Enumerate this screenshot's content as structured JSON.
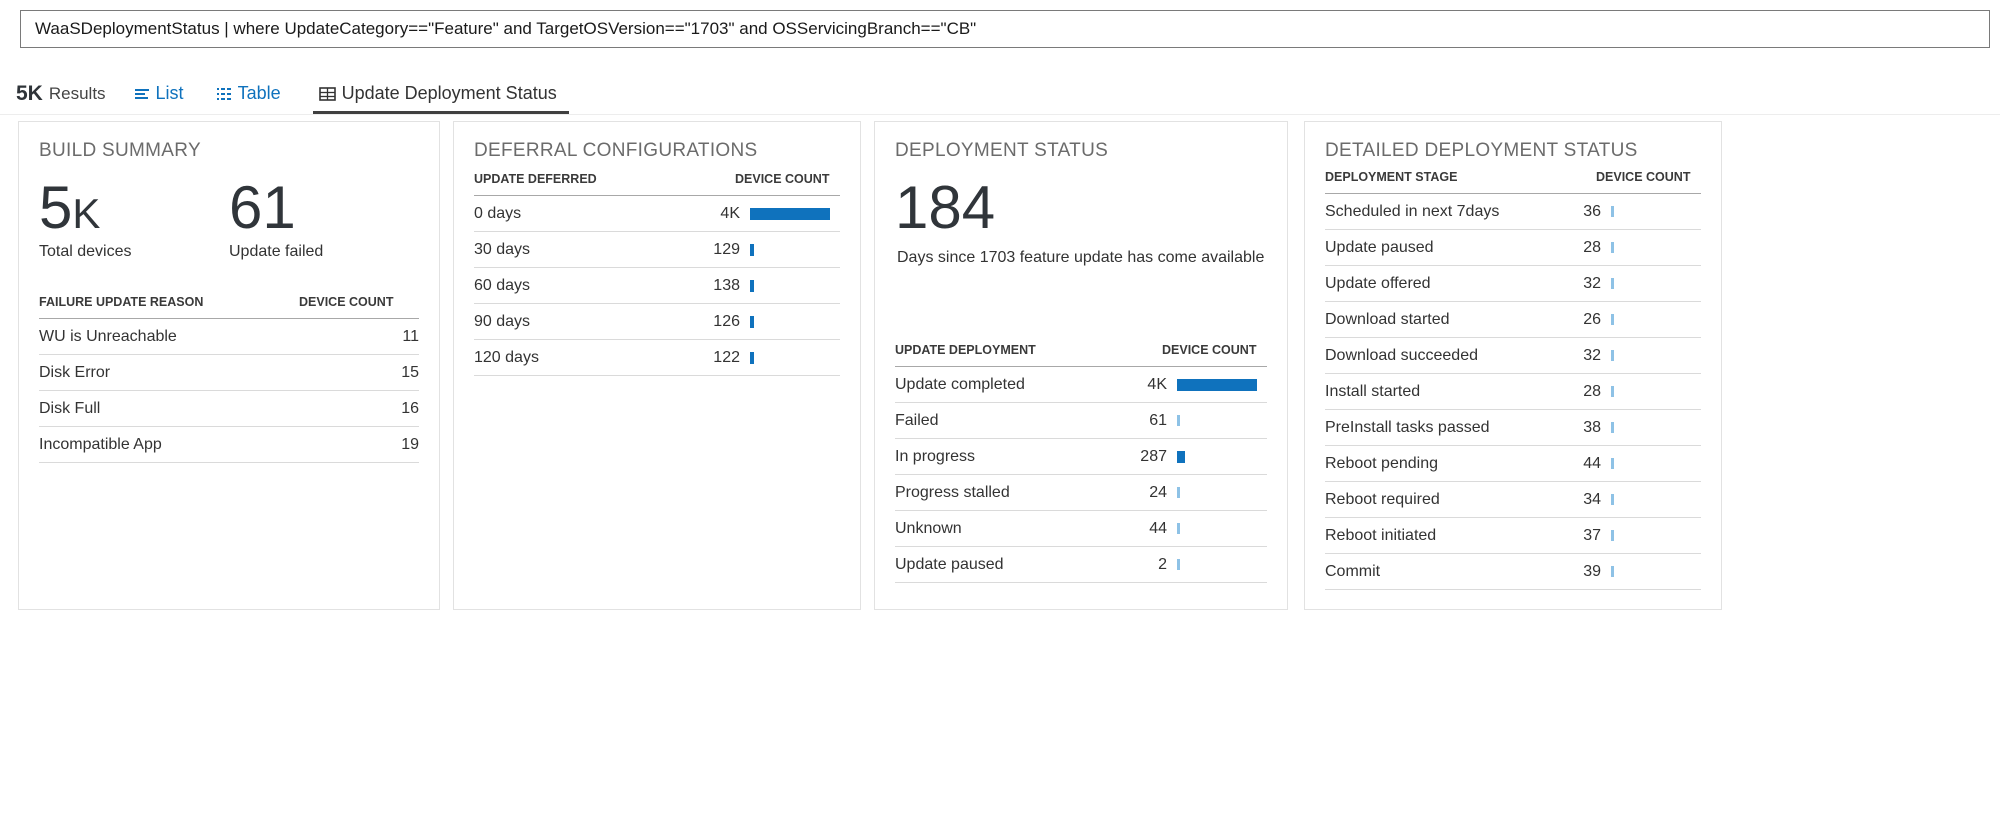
{
  "query": {
    "text": "WaaSDeploymentStatus | where UpdateCategory==\"Feature\" and TargetOSVersion==\"1703\" and OSServicingBranch==\"CB\""
  },
  "toolbar": {
    "result_count": "5K",
    "results_label": "Results",
    "tabs": [
      {
        "id": "list",
        "label": "List",
        "icon": "list-icon",
        "active": false
      },
      {
        "id": "table",
        "label": "Table",
        "icon": "table-icon",
        "active": false
      },
      {
        "id": "update-deployment-status",
        "label": "Update Deployment Status",
        "icon": "grid-icon",
        "active": true
      }
    ]
  },
  "colors": {
    "accent_blue": "#0f72bd",
    "light_blue": "#8ec2e6",
    "dark_text": "#333333",
    "panel_title_gray": "#6b6b6b",
    "big_number": "#30353a",
    "card_border": "#e2e2e2"
  },
  "panels": {
    "build_summary": {
      "title": "BUILD SUMMARY",
      "stats": [
        {
          "value": "5",
          "suffix": "K",
          "label": "Total devices"
        },
        {
          "value": "61",
          "suffix": "",
          "label": "Update failed"
        }
      ],
      "table": {
        "col1": "FAILURE UPDATE REASON",
        "col2": "DEVICE COUNT",
        "rows": [
          {
            "label": "WU is Unreachable",
            "value": "11"
          },
          {
            "label": "Disk Error",
            "value": "15"
          },
          {
            "label": "Disk Full",
            "value": "16"
          },
          {
            "label": "Incompatible App",
            "value": "19"
          }
        ]
      }
    },
    "deferral_configurations": {
      "title": "DEFERRAL CONFIGURATIONS",
      "table": {
        "col1": "UPDATE DEFERRED",
        "col2": "DEVICE COUNT",
        "rows": [
          {
            "label": "0 days",
            "value": "4K",
            "bar": {
              "width": 80,
              "tone": "dark"
            }
          },
          {
            "label": "30 days",
            "value": "129",
            "bar": {
              "width": 4,
              "tone": "dark"
            }
          },
          {
            "label": "60 days",
            "value": "138",
            "bar": {
              "width": 4,
              "tone": "dark"
            }
          },
          {
            "label": "90 days",
            "value": "126",
            "bar": {
              "width": 4,
              "tone": "dark"
            }
          },
          {
            "label": "120 days",
            "value": "122",
            "bar": {
              "width": 4,
              "tone": "dark"
            }
          }
        ]
      }
    },
    "deployment_status": {
      "title": "DEPLOYMENT STATUS",
      "stat": {
        "value": "184",
        "label": "Days since 1703 feature update has come available"
      },
      "table": {
        "col1": "UPDATE DEPLOYMENT",
        "col2": "DEVICE COUNT",
        "rows": [
          {
            "label": "Update completed",
            "value": "4K",
            "bar": {
              "width": 80,
              "tone": "dark"
            }
          },
          {
            "label": "Failed",
            "value": "61",
            "bar": {
              "width": 3,
              "tone": "light"
            }
          },
          {
            "label": "In progress",
            "value": "287",
            "bar": {
              "width": 8,
              "tone": "dark"
            }
          },
          {
            "label": "Progress stalled",
            "value": "24",
            "bar": {
              "width": 3,
              "tone": "light"
            }
          },
          {
            "label": "Unknown",
            "value": "44",
            "bar": {
              "width": 3,
              "tone": "light"
            }
          },
          {
            "label": "Update paused",
            "value": "2",
            "bar": {
              "width": 3,
              "tone": "light"
            }
          }
        ]
      }
    },
    "detailed_deployment_status": {
      "title": "DETAILED DEPLOYMENT STATUS",
      "table": {
        "col1": "DEPLOYMENT STAGE",
        "col2": "DEVICE COUNT",
        "rows": [
          {
            "label": "Scheduled in next 7days",
            "value": "36",
            "bar": {
              "width": 3,
              "tone": "light"
            }
          },
          {
            "label": "Update paused",
            "value": "28",
            "bar": {
              "width": 3,
              "tone": "light"
            }
          },
          {
            "label": "Update offered",
            "value": "32",
            "bar": {
              "width": 3,
              "tone": "light"
            }
          },
          {
            "label": "Download started",
            "value": "26",
            "bar": {
              "width": 3,
              "tone": "light"
            }
          },
          {
            "label": "Download succeeded",
            "value": "32",
            "bar": {
              "width": 3,
              "tone": "light"
            }
          },
          {
            "label": "Install started",
            "value": "28",
            "bar": {
              "width": 3,
              "tone": "light"
            }
          },
          {
            "label": "PreInstall tasks passed",
            "value": "38",
            "bar": {
              "width": 3,
              "tone": "light"
            }
          },
          {
            "label": "Reboot pending",
            "value": "44",
            "bar": {
              "width": 3,
              "tone": "light"
            }
          },
          {
            "label": "Reboot required",
            "value": "34",
            "bar": {
              "width": 3,
              "tone": "light"
            }
          },
          {
            "label": "Reboot initiated",
            "value": "37",
            "bar": {
              "width": 3,
              "tone": "light"
            }
          },
          {
            "label": "Commit",
            "value": "39",
            "bar": {
              "width": 3,
              "tone": "light"
            }
          }
        ]
      }
    }
  }
}
